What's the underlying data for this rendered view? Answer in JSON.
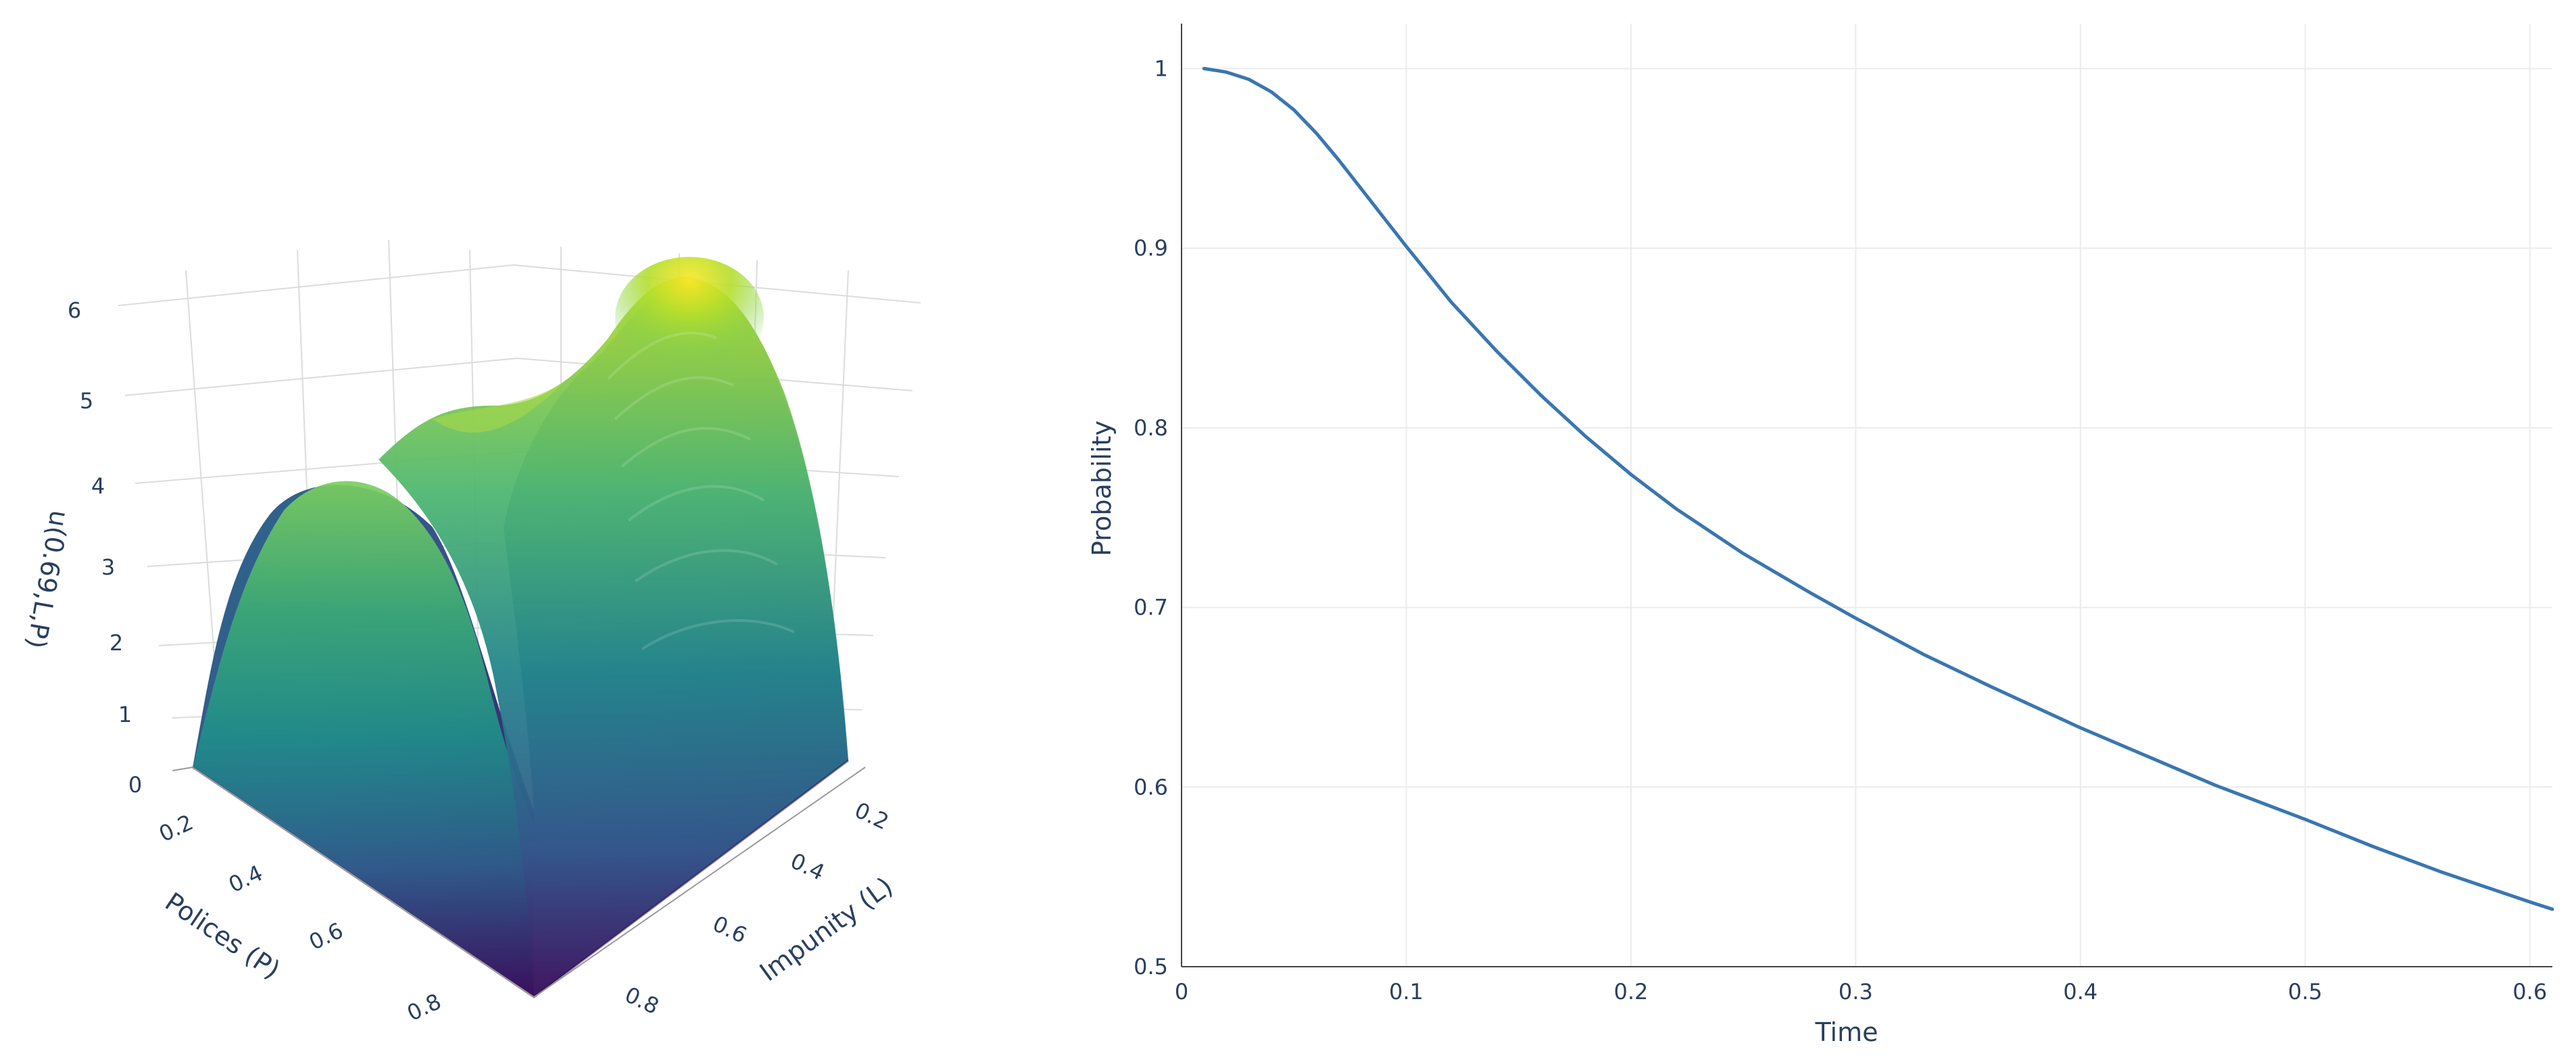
{
  "chart_data": [
    {
      "type": "surface",
      "colorscale": "viridis",
      "colors": {
        "viridis": [
          "#440154",
          "#482878",
          "#3e4989",
          "#31688e",
          "#26828e",
          "#1f9e89",
          "#35b779",
          "#6ece58",
          "#b5de2b",
          "#fde725"
        ],
        "grid": "#d9d9d9"
      },
      "x_axis": {
        "label": "Impunity (L)",
        "range": [
          0,
          1
        ],
        "ticks": [
          "0.2",
          "0.4",
          "0.6",
          "0.8"
        ]
      },
      "y_axis": {
        "label": "Polices (P)",
        "range": [
          0,
          1
        ],
        "ticks": [
          "0.2",
          "0.4",
          "0.6",
          "0.8"
        ]
      },
      "z_axis": {
        "label": "u(0.69,L,P)",
        "range": [
          0,
          6
        ],
        "ticks": [
          "0",
          "1",
          "2",
          "3",
          "4",
          "5",
          "6"
        ]
      },
      "grid": true
    },
    {
      "type": "line",
      "color": "#3a76b0",
      "xlabel": "Time",
      "ylabel": "Probability",
      "xlim": [
        0,
        0.61
      ],
      "ylim": [
        0.5,
        1.025
      ],
      "x_ticks": [
        "0",
        "0.1",
        "0.2",
        "0.3",
        "0.4",
        "0.5",
        "0.6"
      ],
      "y_ticks": [
        "0.5",
        "0.6",
        "0.7",
        "0.8",
        "0.9",
        "1"
      ],
      "grid": true,
      "series": [
        {
          "x": [
            0.01,
            0.02,
            0.03,
            0.04,
            0.05,
            0.06,
            0.07,
            0.08,
            0.09,
            0.1,
            0.12,
            0.14,
            0.16,
            0.18,
            0.2,
            0.22,
            0.25,
            0.28,
            0.3,
            0.33,
            0.36,
            0.4,
            0.43,
            0.46,
            0.5,
            0.53,
            0.56,
            0.6,
            0.61
          ],
          "y": [
            1.0,
            0.998,
            0.994,
            0.987,
            0.977,
            0.964,
            0.949,
            0.933,
            0.917,
            0.901,
            0.87,
            0.843,
            0.818,
            0.795,
            0.774,
            0.755,
            0.73,
            0.708,
            0.694,
            0.674,
            0.656,
            0.633,
            0.617,
            0.601,
            0.582,
            0.567,
            0.553,
            0.536,
            0.532
          ]
        }
      ]
    }
  ]
}
